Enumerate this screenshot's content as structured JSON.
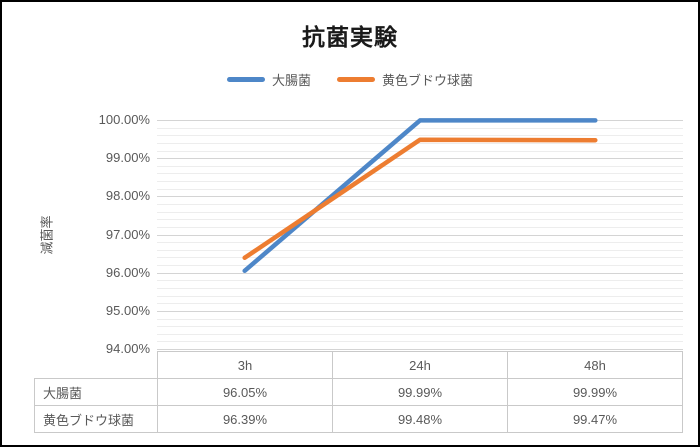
{
  "chart": {
    "title": "抗菌実験",
    "y_axis": {
      "title": "減菌率",
      "tick_labels": [
        "100.00%",
        "99.00%",
        "98.00%",
        "97.00%",
        "96.00%",
        "95.00%",
        "94.00%"
      ]
    },
    "x_axis": {
      "categories": [
        "3h",
        "24h",
        "48h"
      ]
    }
  },
  "chart_data": {
    "type": "line",
    "title": "抗菌実験",
    "categories": [
      "3h",
      "24h",
      "48h"
    ],
    "series": [
      {
        "name": "大腸菌",
        "values": [
          96.05,
          99.99,
          99.99
        ],
        "color": "#4e87c8"
      },
      {
        "name": "黄色ブドウ球菌",
        "values": [
          96.39,
          99.48,
          99.47
        ],
        "color": "#ed7d31"
      }
    ],
    "xlabel": "",
    "ylabel": "減菌率",
    "ylim": [
      94,
      100
    ],
    "y_major_unit": 1,
    "y_minor_unit": 0.2,
    "y_tick_format": "0.00%",
    "grid": true,
    "legend_position": "top",
    "show_data_table": true
  },
  "data_table": {
    "corner_label": "",
    "columns": [
      "3h",
      "24h",
      "48h"
    ],
    "rows": [
      {
        "label": "大腸菌",
        "values": [
          "96.05%",
          "99.99%",
          "99.99%"
        ]
      },
      {
        "label": "黄色ブドウ球菌",
        "values": [
          "96.39%",
          "99.48%",
          "99.47%"
        ]
      }
    ]
  },
  "colors": {
    "series_blue": "#4e87c8",
    "series_orange": "#ed7d31",
    "grid_major": "#d4d4d4",
    "grid_minor": "#ededed",
    "label_gray": "#595959",
    "table_border": "#c9c9c9",
    "frame_border": "#000000",
    "title_text": "#1a1a1a"
  }
}
